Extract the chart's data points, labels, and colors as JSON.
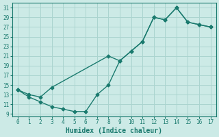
{
  "xlabel": "Humidex (Indice chaleur)",
  "background_color": "#cceae6",
  "grid_color": "#aad4cf",
  "line_color": "#1a7a6e",
  "xlim": [
    -0.5,
    17.5
  ],
  "ylim": [
    8.5,
    32
  ],
  "xticks": [
    0,
    1,
    2,
    3,
    4,
    5,
    6,
    7,
    8,
    9,
    10,
    11,
    12,
    13,
    14,
    15,
    16,
    17
  ],
  "yticks": [
    9,
    11,
    13,
    15,
    17,
    19,
    21,
    23,
    25,
    27,
    29,
    31
  ],
  "line1_x": [
    0,
    1,
    2,
    3,
    8,
    9,
    10,
    11,
    12,
    13,
    14,
    15,
    16,
    17
  ],
  "line1_y": [
    14,
    13,
    12.5,
    14.5,
    21,
    20,
    22,
    24,
    29,
    28.5,
    31,
    28,
    27.5,
    27
  ],
  "line2_x": [
    0,
    1,
    2,
    3,
    4,
    5,
    6,
    7,
    8,
    9,
    10,
    11,
    12,
    13,
    14,
    15,
    16,
    17
  ],
  "line2_y": [
    14,
    12.5,
    11.5,
    10.5,
    10,
    9.5,
    9.5,
    13,
    15,
    20,
    22,
    24,
    29,
    28.5,
    31,
    28,
    27.5,
    27
  ],
  "marker": "D",
  "markersize": 2.5,
  "linewidth": 1.0,
  "tick_fontsize": 5.5,
  "label_fontsize": 7
}
